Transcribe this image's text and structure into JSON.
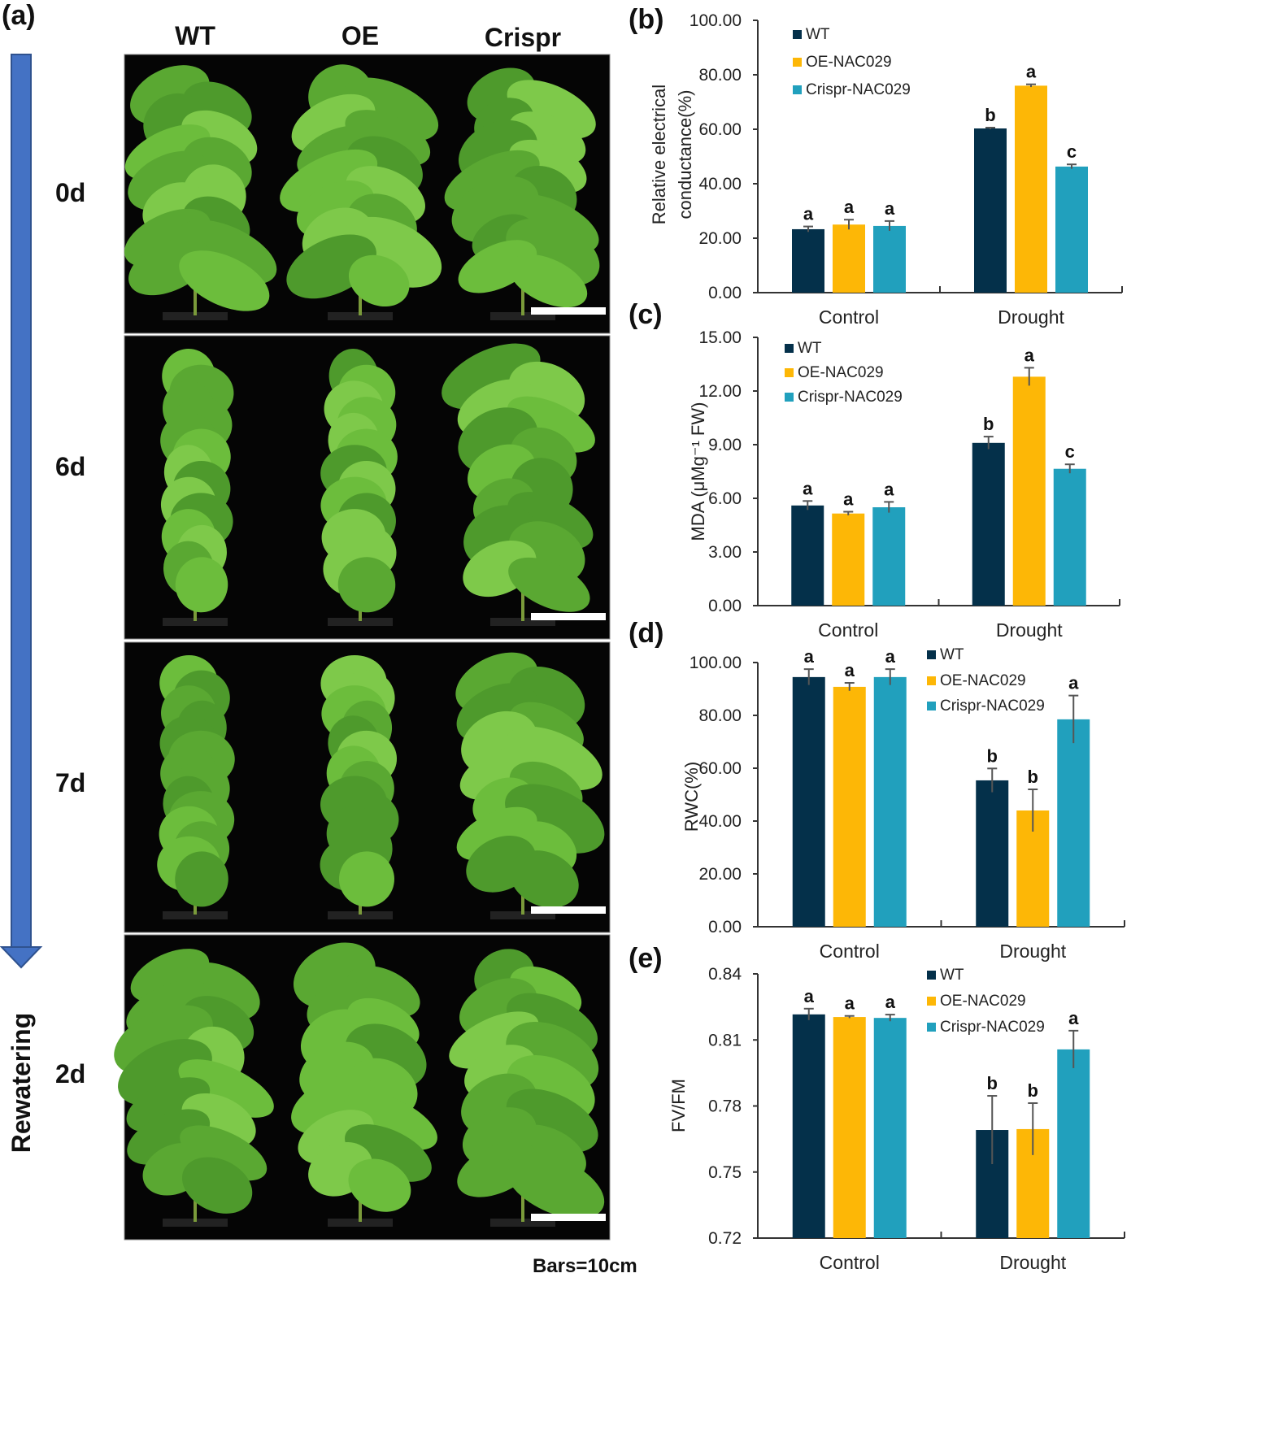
{
  "panel_a": {
    "label": "(a)",
    "columns": [
      "WT",
      "OE",
      "Crispr"
    ],
    "rows": [
      "0d",
      "6d",
      "7d",
      "2d"
    ],
    "rewatering_label": "Rewatering",
    "scale_note": "Bars=10cm",
    "arrow_color": "#4472C4"
  },
  "colors": {
    "WT": "#04304A",
    "OE-NAC029": "#FDB706",
    "Crispr-NAC029": "#21A0BD"
  },
  "chart_data": [
    {
      "panel": "(b)",
      "type": "bar",
      "ylabel": [
        "Relative electrical",
        "conductance(%)"
      ],
      "ylim": [
        0,
        100
      ],
      "yticks": [
        0,
        20,
        40,
        60,
        80,
        100
      ],
      "categories": [
        "Control",
        "Drought"
      ],
      "series": [
        {
          "name": "WT",
          "values": [
            23.3,
            60.3
          ],
          "errors": [
            1.0,
            0.3
          ],
          "letters": [
            "a",
            "b"
          ]
        },
        {
          "name": "OE-NAC029",
          "values": [
            25.0,
            76.0
          ],
          "errors": [
            1.8,
            0.5
          ],
          "letters": [
            "a",
            "a"
          ]
        },
        {
          "name": "Crispr-NAC029",
          "values": [
            24.5,
            46.3
          ],
          "errors": [
            1.8,
            0.8
          ],
          "letters": [
            "a",
            "c"
          ]
        }
      ],
      "legend": "top-left"
    },
    {
      "panel": "(c)",
      "type": "bar",
      "ylabel": [
        "MDA (μMg⁻¹ FW)"
      ],
      "ylim": [
        0,
        15
      ],
      "yticks": [
        0,
        3,
        6,
        9,
        12,
        15
      ],
      "categories": [
        "Control",
        "Drought"
      ],
      "series": [
        {
          "name": "WT",
          "values": [
            5.6,
            9.1
          ],
          "errors": [
            0.25,
            0.35
          ],
          "letters": [
            "a",
            "b"
          ]
        },
        {
          "name": "OE-NAC029",
          "values": [
            5.15,
            12.8
          ],
          "errors": [
            0.1,
            0.5
          ],
          "letters": [
            "a",
            "a"
          ]
        },
        {
          "name": "Crispr-NAC029",
          "values": [
            5.5,
            7.65
          ],
          "errors": [
            0.3,
            0.25
          ],
          "letters": [
            "a",
            "c"
          ]
        }
      ],
      "legend": "top-left"
    },
    {
      "panel": "(d)",
      "type": "bar",
      "ylabel": [
        "RWC(%)"
      ],
      "ylim": [
        0,
        100
      ],
      "yticks": [
        0,
        20,
        40,
        60,
        80,
        100
      ],
      "categories": [
        "Control",
        "Drought"
      ],
      "series": [
        {
          "name": "WT",
          "values": [
            94.5,
            55.4
          ],
          "errors": [
            3.0,
            4.5
          ],
          "letters": [
            "a",
            "b"
          ]
        },
        {
          "name": "OE-NAC029",
          "values": [
            90.8,
            44.0
          ],
          "errors": [
            1.5,
            8.0
          ],
          "letters": [
            "a",
            "b"
          ]
        },
        {
          "name": "Crispr-NAC029",
          "values": [
            94.5,
            78.5
          ],
          "errors": [
            3.0,
            9.0
          ],
          "letters": [
            "a",
            "a"
          ]
        }
      ],
      "legend": "top-right"
    },
    {
      "panel": "(e)",
      "type": "bar",
      "ylabel": [
        "FV/FM"
      ],
      "ylim": [
        0.72,
        0.84
      ],
      "yticks": [
        0.72,
        0.75,
        0.78,
        0.81,
        0.84
      ],
      "categories": [
        "Control",
        "Drought"
      ],
      "series": [
        {
          "name": "WT",
          "values": [
            0.8216,
            0.7691
          ],
          "errors": [
            0.0026,
            0.0155
          ],
          "letters": [
            "a",
            "b"
          ]
        },
        {
          "name": "OE-NAC029",
          "values": [
            0.8204,
            0.7695
          ],
          "errors": [
            0.0005,
            0.0118
          ],
          "letters": [
            "a",
            "b"
          ]
        },
        {
          "name": "Crispr-NAC029",
          "values": [
            0.82,
            0.8057
          ],
          "errors": [
            0.0015,
            0.0085
          ],
          "letters": [
            "a",
            "a"
          ]
        }
      ],
      "legend": "top-right"
    }
  ]
}
